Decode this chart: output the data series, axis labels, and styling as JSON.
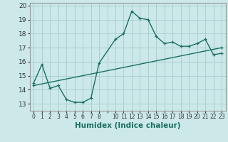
{
  "xlabel": "Humidex (Indice chaleur)",
  "background_color": "#cce8e8",
  "grid_color": "#aad0d0",
  "line_color": "#1a7060",
  "xlim": [
    -0.5,
    23.5
  ],
  "ylim": [
    12.5,
    20.2
  ],
  "yticks": [
    13,
    14,
    15,
    16,
    17,
    18,
    19,
    20
  ],
  "curve1_x": [
    0,
    1,
    2,
    3,
    4,
    5,
    6,
    7,
    8,
    10,
    11,
    12,
    13,
    14,
    15,
    16,
    17,
    18,
    19,
    20,
    21,
    22,
    23
  ],
  "curve1_y": [
    14.5,
    15.8,
    14.1,
    14.3,
    13.3,
    13.1,
    13.1,
    13.4,
    15.9,
    17.6,
    18.0,
    19.6,
    19.1,
    19.0,
    17.8,
    17.3,
    17.4,
    17.1,
    17.1,
    17.3,
    17.6,
    16.5,
    16.6
  ],
  "curve2_x": [
    0,
    23
  ],
  "curve2_y": [
    14.3,
    17.0
  ]
}
